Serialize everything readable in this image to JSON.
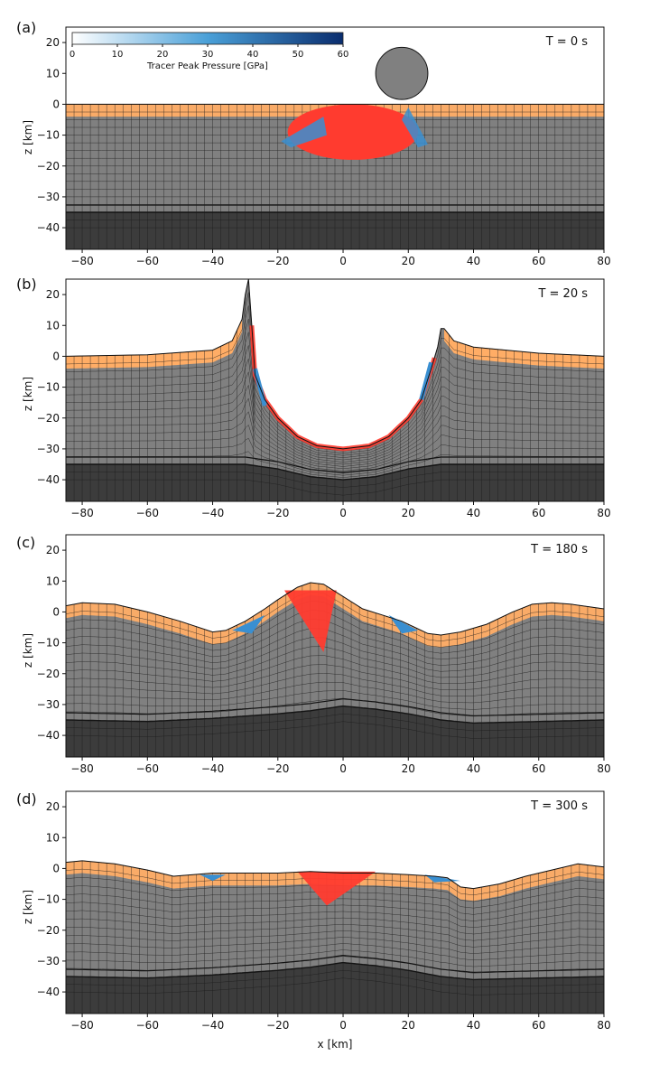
{
  "figure": {
    "xlabel": "x [km]",
    "ylabel": "z [km]",
    "colorbar": {
      "label": "Tracer Peak Pressure [GPa]",
      "range": [
        0,
        60
      ],
      "ticks": [
        "0",
        "10",
        "20",
        "30",
        "40",
        "50",
        "60"
      ],
      "colors": [
        "#ffffff",
        "#4aa0d8",
        "#0a2d6e"
      ]
    },
    "colors": {
      "sediment": "#ffad66",
      "crust": "#808080",
      "mantle": "#3c3c3c",
      "melt_tracers": "#ff3b2f",
      "shocked_tracers": "#3a8fd1",
      "grid": "#1a1a1a"
    },
    "layer_tops_km": {
      "sediment": 0,
      "crust": -4,
      "mantle": -35
    }
  },
  "chart_data": [
    {
      "type": "area",
      "panel": "(a)",
      "time_label": "T =    0 s",
      "xlim": [
        -85,
        80
      ],
      "ylim": [
        -47,
        25
      ],
      "xticks": [
        -80,
        -60,
        -40,
        -20,
        0,
        20,
        40,
        60,
        80
      ],
      "yticks": [
        20,
        10,
        0,
        -10,
        -20,
        -30,
        -40
      ],
      "surface": {
        "x": [
          -85,
          80
        ],
        "z": [
          0,
          0
        ]
      },
      "moho": {
        "x": [
          -85,
          80
        ],
        "z": [
          -35,
          -35
        ]
      },
      "impactor": {
        "center_x": 18,
        "center_z": 10,
        "radius": 8
      },
      "show_xlabel": false
    },
    {
      "type": "area",
      "panel": "(b)",
      "time_label": "T =  20 s",
      "xlim": [
        -85,
        80
      ],
      "ylim": [
        -47,
        25
      ],
      "xticks": [
        -80,
        -60,
        -40,
        -20,
        0,
        20,
        40,
        60,
        80
      ],
      "yticks": [
        20,
        10,
        0,
        -10,
        -20,
        -30,
        -40
      ],
      "surface": {
        "x": [
          -85,
          -60,
          -40,
          -34,
          -31,
          -30,
          -29,
          -28,
          -27,
          -24,
          -20,
          -14,
          -8,
          0,
          8,
          14,
          20,
          24,
          27,
          29,
          30,
          31,
          34,
          40,
          50,
          60,
          80
        ],
        "z": [
          0,
          0.5,
          2,
          5,
          12,
          20,
          25,
          10,
          -6,
          -14,
          -20,
          -26,
          -29,
          -30,
          -29,
          -26,
          -20,
          -14,
          -4,
          3,
          9,
          9,
          5,
          3,
          2,
          1,
          0
        ]
      },
      "moho": {
        "x": [
          -85,
          -30,
          -20,
          -10,
          0,
          10,
          20,
          30,
          80
        ],
        "z": [
          -35,
          -35,
          -36.5,
          -39,
          -40,
          -39,
          -36.5,
          -35,
          -35
        ]
      },
      "show_xlabel": false
    },
    {
      "type": "area",
      "panel": "(c)",
      "time_label": "T =  180 s",
      "xlim": [
        -85,
        80
      ],
      "ylim": [
        -47,
        25
      ],
      "xticks": [
        -80,
        -60,
        -40,
        -20,
        0,
        20,
        40,
        60,
        80
      ],
      "yticks": [
        20,
        10,
        0,
        -10,
        -20,
        -30,
        -40
      ],
      "surface": {
        "x": [
          -85,
          -80,
          -70,
          -60,
          -50,
          -40,
          -36,
          -30,
          -24,
          -20,
          -14,
          -10,
          -6,
          0,
          6,
          12,
          18,
          22,
          26,
          30,
          36,
          44,
          52,
          58,
          64,
          70,
          80
        ],
        "z": [
          2,
          3,
          2.5,
          0,
          -3,
          -6.5,
          -6,
          -3,
          1,
          4,
          8,
          9.5,
          9,
          5,
          1,
          -1,
          -3,
          -5,
          -7,
          -7.5,
          -6.5,
          -4,
          0,
          2.5,
          3,
          2.5,
          1
        ]
      },
      "moho": {
        "x": [
          -85,
          -60,
          -40,
          -20,
          -10,
          0,
          10,
          20,
          30,
          40,
          60,
          80
        ],
        "z": [
          -35,
          -35.5,
          -34.5,
          -33,
          -32,
          -30.5,
          -31.5,
          -33,
          -35,
          -36,
          -35.5,
          -35
        ]
      },
      "show_xlabel": false
    },
    {
      "type": "area",
      "panel": "(d)",
      "time_label": "T =  300 s",
      "xlim": [
        -85,
        80
      ],
      "ylim": [
        -47,
        25
      ],
      "xticks": [
        -80,
        -60,
        -40,
        -20,
        0,
        20,
        40,
        60,
        80
      ],
      "yticks": [
        20,
        10,
        0,
        -10,
        -20,
        -30,
        -40
      ],
      "surface": {
        "x": [
          -85,
          -80,
          -70,
          -60,
          -52,
          -46,
          -40,
          -30,
          -20,
          -10,
          0,
          10,
          20,
          28,
          32,
          36,
          40,
          48,
          56,
          64,
          72,
          80
        ],
        "z": [
          2,
          2.5,
          1.5,
          -0.5,
          -2.5,
          -2,
          -1.5,
          -1.5,
          -1.5,
          -1,
          -1.5,
          -1.5,
          -2,
          -2.5,
          -3,
          -6,
          -6.5,
          -5,
          -2.5,
          -0.5,
          1.5,
          0.5
        ]
      },
      "moho": {
        "x": [
          -85,
          -60,
          -40,
          -20,
          -10,
          0,
          10,
          20,
          30,
          40,
          60,
          80
        ],
        "z": [
          -35,
          -35.5,
          -34.5,
          -33,
          -32,
          -30.5,
          -31.5,
          -33,
          -35,
          -36,
          -35.5,
          -35
        ]
      },
      "show_xlabel": true
    }
  ]
}
